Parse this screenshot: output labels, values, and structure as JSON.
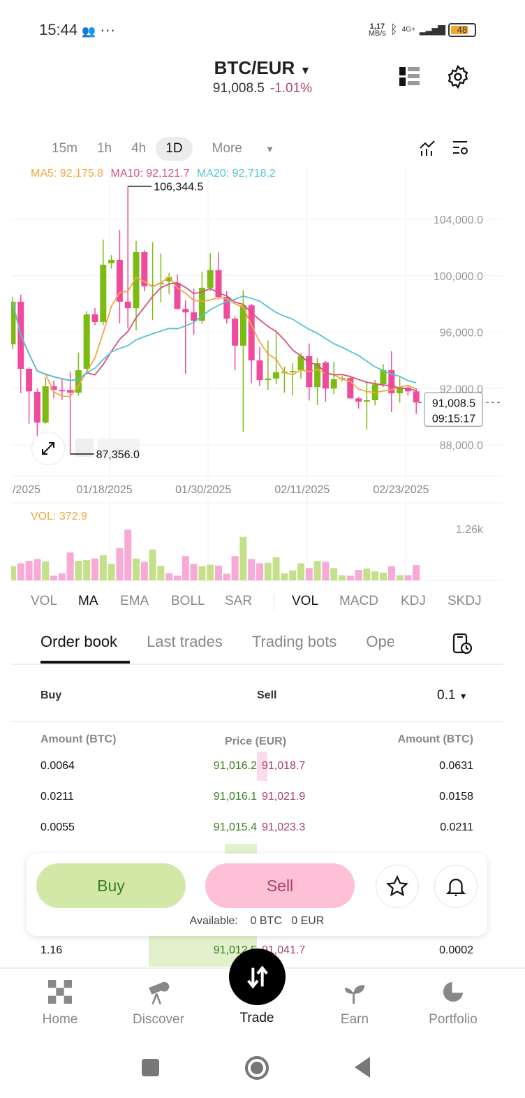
{
  "status": {
    "time": "15:44",
    "speed": "1,17",
    "speed_unit": "MB/s",
    "network": "4G+",
    "battery": "48"
  },
  "header": {
    "pair": "BTC/EUR",
    "price": "91,008.5",
    "change": "-1.01%"
  },
  "timeframes": [
    {
      "label": "15m"
    },
    {
      "label": "1h"
    },
    {
      "label": "4h"
    },
    {
      "label": "1D",
      "active": true
    },
    {
      "label": "More"
    }
  ],
  "legend": {
    "ma5": "MA5: 92,175.8",
    "ma10": "MA10: 92,121.7",
    "ma20": "MA20: 92,718.2",
    "vol": "VOL: 372.9"
  },
  "colors": {
    "up": "#7dbb12",
    "down": "#f04a9c",
    "ma5": "#f0a840",
    "ma10": "#d9507c",
    "ma20": "#52c4d2",
    "vol_up": "#c4e089",
    "vol_down": "#f8a9d6"
  },
  "chart_data": {
    "type": "candlestick",
    "y_ticks": [
      "104,000.0",
      "100,000.0",
      "96,000.0",
      "92,000.0",
      "88,000.0"
    ],
    "y_tick_values": [
      104000,
      100000,
      96000,
      92000,
      88000
    ],
    "x_ticks": [
      "/2025",
      "01/18/2025",
      "01/30/2025",
      "02/11/2025",
      "02/23/2025"
    ],
    "x_tick_candle_index": [
      -1,
      12,
      24,
      36,
      48
    ],
    "high_label": "106,344.5",
    "low_label": "87,356.0",
    "last_price": "91,008.5",
    "countdown": "09:15:17",
    "vol_tick": "1.26k",
    "vol_tick_value": 1260,
    "ohlc": [
      [
        95134,
        98500,
        94800,
        98156
      ],
      [
        98156,
        98650,
        91670,
        93400
      ],
      [
        93400,
        93500,
        89500,
        91800
      ],
      [
        91770,
        92000,
        88450,
        89590
      ],
      [
        89590,
        92800,
        89500,
        92160
      ],
      [
        92160,
        92560,
        91300,
        91900
      ],
      [
        91900,
        92700,
        91170,
        91850
      ],
      [
        91900,
        93200,
        87356,
        91700
      ],
      [
        91700,
        94540,
        91500,
        93300
      ],
      [
        93400,
        97500,
        93000,
        97260
      ],
      [
        97260,
        97700,
        96500,
        96720
      ],
      [
        96720,
        102560,
        96500,
        100780
      ],
      [
        100880,
        101470,
        100500,
        101130
      ],
      [
        101130,
        103260,
        96620,
        98160
      ],
      [
        98160,
        106344.5,
        96270,
        97700
      ],
      [
        97700,
        102470,
        96120,
        101670
      ],
      [
        101670,
        101800,
        98900,
        99250
      ],
      [
        99300,
        102370,
        96870,
        99350
      ],
      [
        99450,
        101570,
        98100,
        99500
      ],
      [
        99600,
        100200,
        98700,
        99900
      ],
      [
        99500,
        100100,
        97600,
        97650
      ],
      [
        97650,
        98250,
        93050,
        97400
      ],
      [
        97400,
        99100,
        95800,
        96800
      ],
      [
        96800,
        100300,
        96600,
        99150
      ],
      [
        99150,
        101600,
        98900,
        100400
      ],
      [
        100400,
        101650,
        98300,
        98500
      ],
      [
        98500,
        98900,
        96600,
        96950
      ],
      [
        96950,
        97100,
        93300,
        95040
      ],
      [
        95040,
        99000,
        88940,
        97900
      ],
      [
        97900,
        98000,
        92400,
        94000
      ],
      [
        94000,
        94950,
        92160,
        92600
      ],
      [
        92650,
        95400,
        91900,
        92700
      ],
      [
        92700,
        95950,
        92300,
        93150
      ],
      [
        93150,
        93550,
        91700,
        93200
      ],
      [
        93200,
        93800,
        91500,
        93250
      ],
      [
        93300,
        94500,
        92700,
        94300
      ],
      [
        94300,
        95200,
        91150,
        92100
      ],
      [
        92100,
        94150,
        90830,
        93800
      ],
      [
        93850,
        93950,
        91070,
        92000
      ],
      [
        92000,
        93900,
        91600,
        92660
      ],
      [
        92700,
        92900,
        92500,
        92750
      ],
      [
        92750,
        92900,
        91300,
        91300
      ],
      [
        91300,
        91400,
        90580,
        91070
      ],
      [
        91130,
        92560,
        89100,
        91170
      ],
      [
        91170,
        92600,
        90800,
        92300
      ],
      [
        92300,
        93720,
        92100,
        93300
      ],
      [
        93300,
        94640,
        90330,
        91660
      ],
      [
        91660,
        92800,
        91000,
        92070
      ],
      [
        92070,
        92200,
        91500,
        91800
      ],
      [
        91800,
        92000,
        90200,
        91008.5
      ]
    ],
    "volume": [
      348,
      418,
      476,
      522,
      464,
      116,
      174,
      684,
      476,
      493,
      534,
      615,
      406,
      789,
      1235,
      534,
      452,
      754,
      360,
      174,
      116,
      592,
      406,
      348,
      383,
      360,
      162,
      592,
      1061,
      522,
      418,
      429,
      568,
      174,
      244,
      418,
      302,
      476,
      452,
      302,
      128,
      116,
      255,
      290,
      220,
      191,
      348,
      128,
      128,
      373
    ],
    "volume_up": [
      true,
      false,
      false,
      false,
      true,
      false,
      false,
      false,
      true,
      true,
      false,
      true,
      true,
      false,
      false,
      true,
      false,
      true,
      true,
      false,
      false,
      false,
      false,
      true,
      true,
      false,
      false,
      false,
      true,
      false,
      false,
      true,
      true,
      true,
      true,
      true,
      false,
      true,
      false,
      true,
      true,
      false,
      false,
      true,
      true,
      true,
      false,
      true,
      false,
      false
    ]
  },
  "indicators": {
    "main": [
      "VOL",
      "MA",
      "EMA",
      "BOLL",
      "SAR"
    ],
    "sub": [
      "VOL",
      "MACD",
      "KDJ",
      "SKDJ"
    ]
  },
  "order_tabs": [
    "Order book",
    "Last trades",
    "Trading bots",
    "Ope"
  ],
  "orderbook": {
    "buy": "Buy",
    "sell": "Sell",
    "precision": "0.1",
    "col_amount_left": "Amount (BTC)",
    "col_price": "Price (EUR)",
    "col_amount_right": "Amount (BTC)",
    "rows": [
      {
        "bid_amt": "0.0064",
        "bid": "91,016.2",
        "ask": "91,018.7",
        "ask_amt": "0.0631"
      },
      {
        "bid_amt": "0.0211",
        "bid": "91,016.1",
        "ask": "91,021.9",
        "ask_amt": "0.0158"
      },
      {
        "bid_amt": "0.0055",
        "bid": "91,015.4",
        "ask": "91,023.3",
        "ask_amt": "0.0211"
      },
      {
        "bid_amt": "1.16",
        "bid": "91,012.5",
        "ask": "91,041.7",
        "ask_amt": "0.0002"
      }
    ]
  },
  "actions": {
    "buy": "Buy",
    "sell": "Sell",
    "available_label": "Available:",
    "available_btc": "0 BTC",
    "available_eur": "0 EUR"
  },
  "nav": [
    {
      "label": "Home"
    },
    {
      "label": "Discover"
    },
    {
      "label": "Trade",
      "active": true
    },
    {
      "label": "Earn"
    },
    {
      "label": "Portfolio"
    }
  ]
}
